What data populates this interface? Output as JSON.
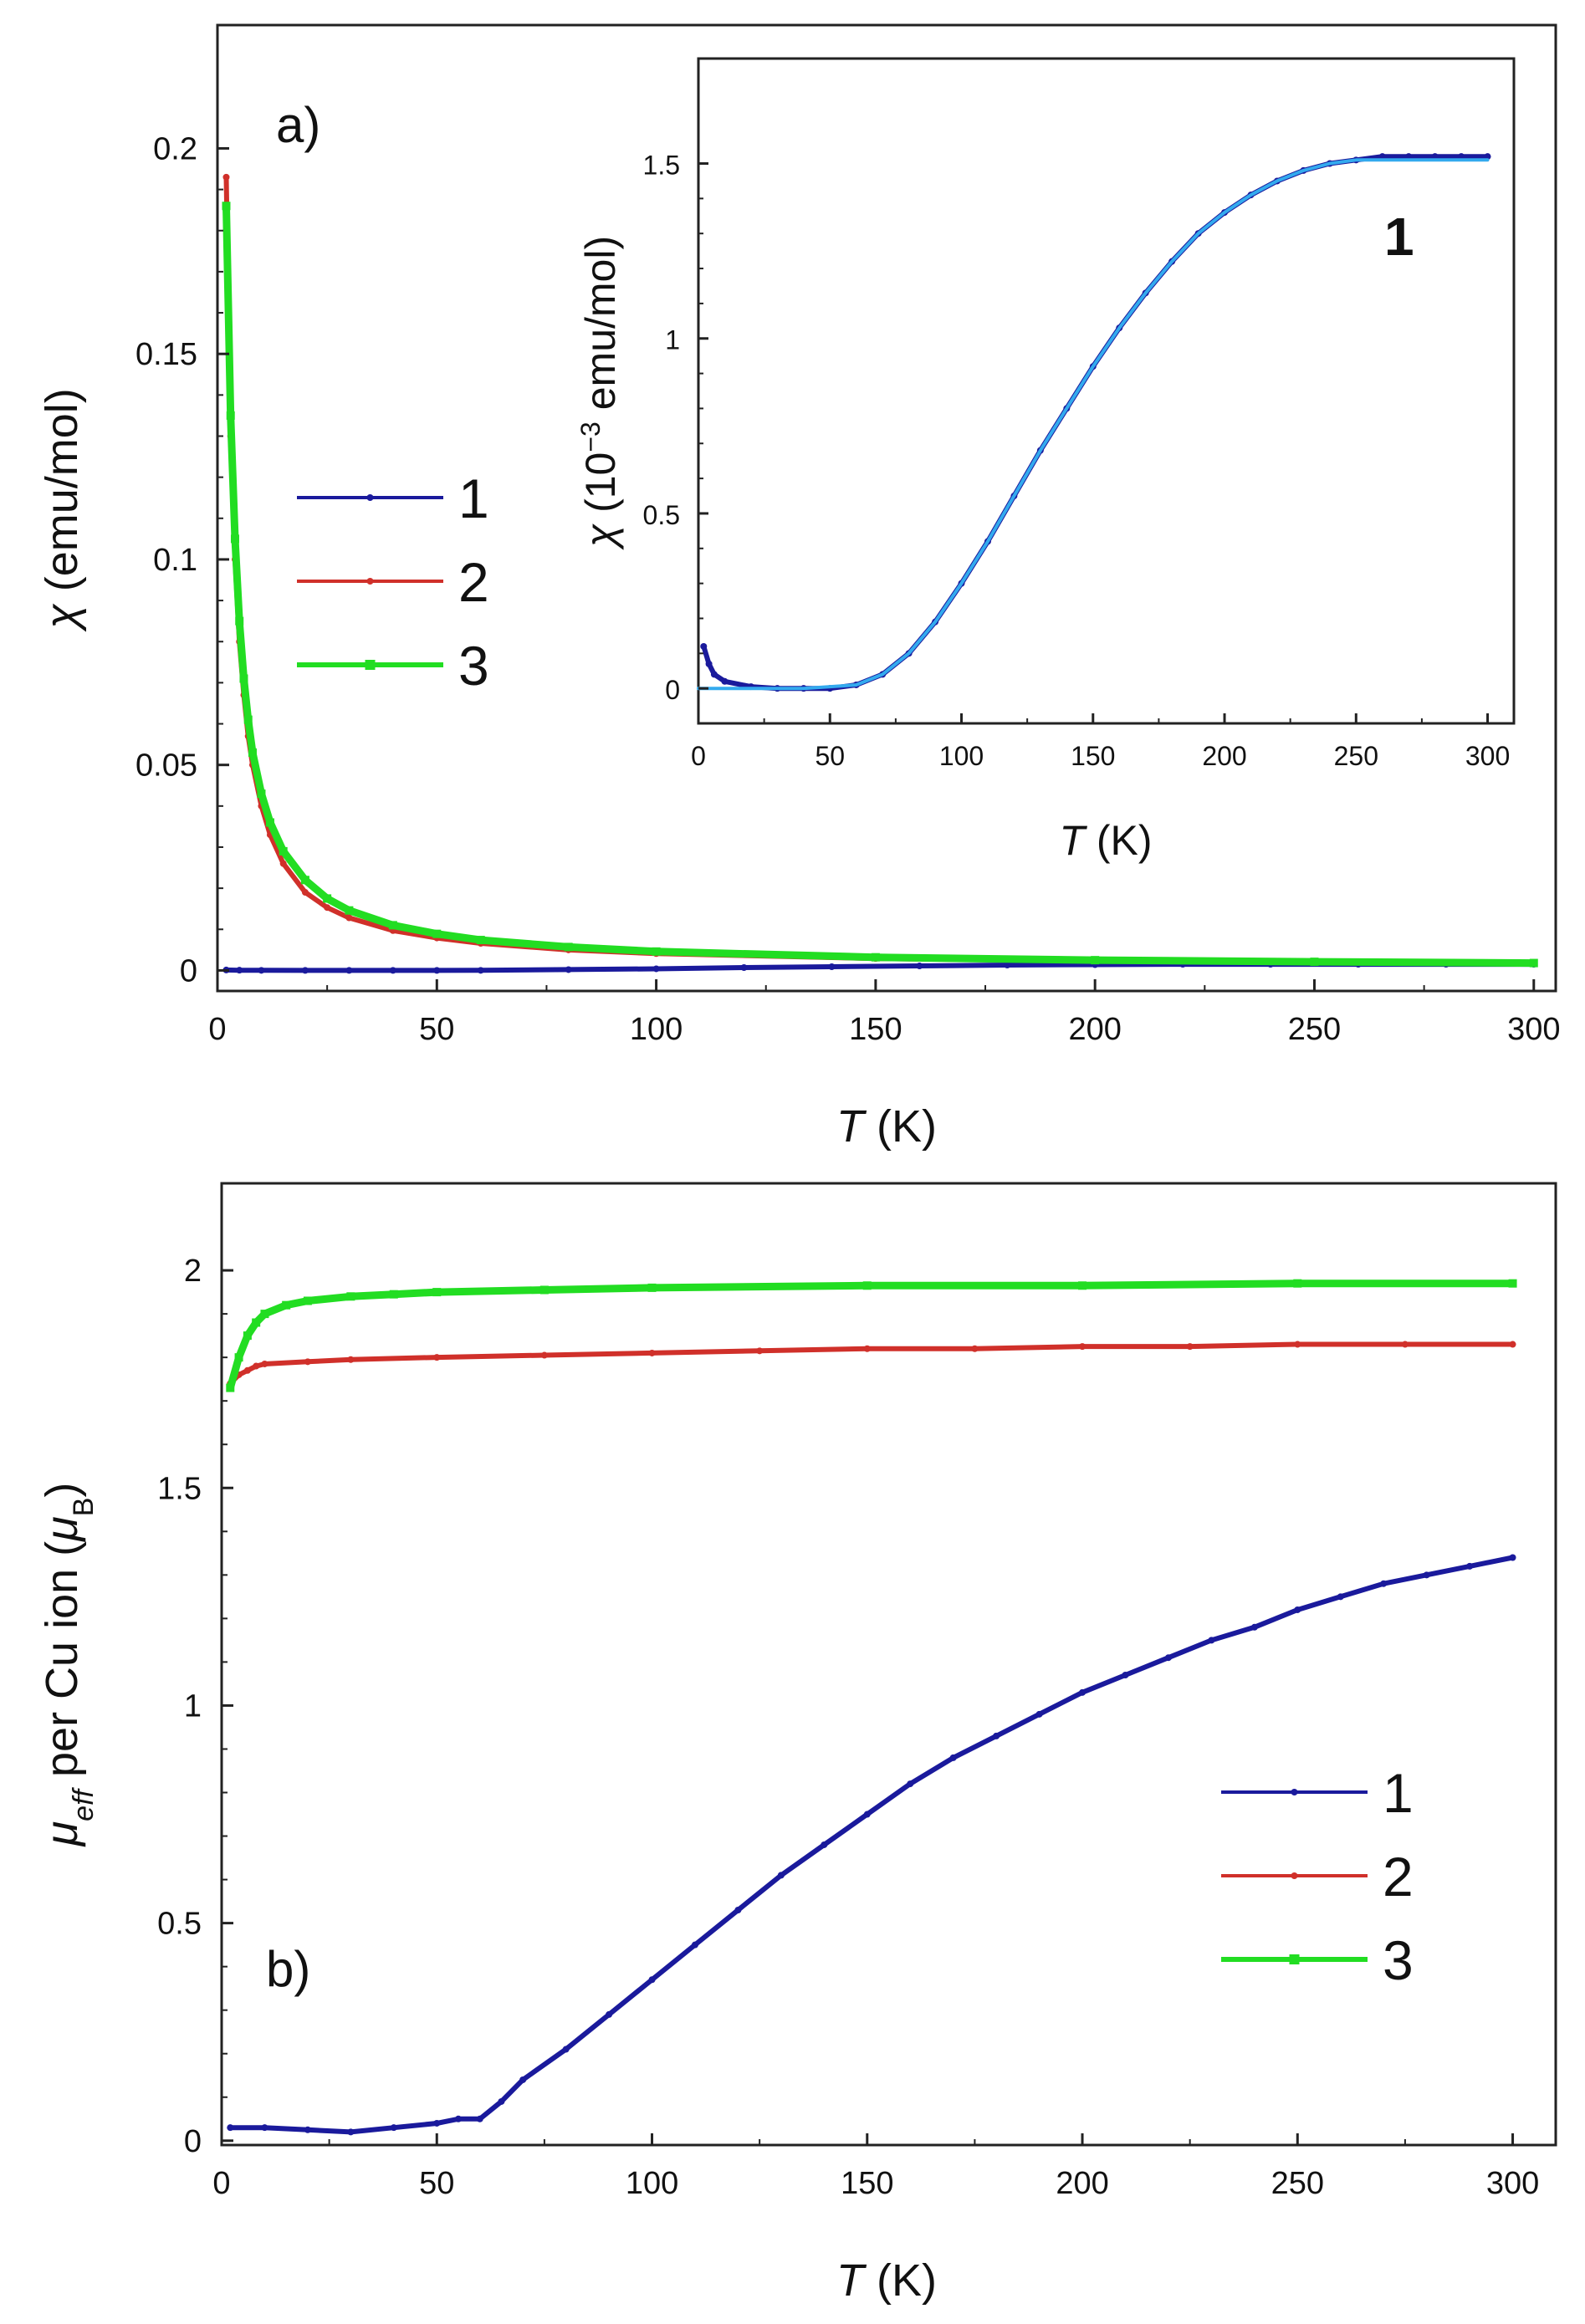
{
  "chart_data": [
    {
      "id": "a",
      "type": "line",
      "panel_label": "a)",
      "xlabel_symbol": "T",
      "xlabel_rest": " (K)",
      "ylabel_symbol": "χ",
      "ylabel_rest": " (emu/mol)",
      "xlim": [
        0,
        305
      ],
      "ylim": [
        -0.005,
        0.23
      ],
      "xticks": [
        0,
        50,
        100,
        150,
        200,
        250,
        300
      ],
      "xtick_labels": [
        "0",
        "50",
        "100",
        "150",
        "200",
        "250",
        "300"
      ],
      "yticks": [
        0,
        0.05,
        0.1,
        0.15,
        0.2
      ],
      "ytick_labels": [
        "0",
        "0.05",
        "0.1",
        "0.15",
        "0.2"
      ],
      "legend": {
        "position": "middle-left",
        "entries": [
          "1",
          "2",
          "3"
        ]
      },
      "series": [
        {
          "name": "1",
          "color": "#1a1a9c",
          "marker": "dot",
          "x": [
            2,
            5,
            10,
            20,
            30,
            40,
            50,
            60,
            80,
            100,
            120,
            140,
            160,
            180,
            200,
            220,
            240,
            260,
            280,
            300
          ],
          "y": [
            0.0001,
            5e-05,
            2e-05,
            1e-05,
            1e-05,
            1e-05,
            1e-05,
            2e-05,
            0.0002,
            0.0004,
            0.0007,
            0.0009,
            0.0011,
            0.0013,
            0.0014,
            0.0015,
            0.0015,
            0.0015,
            0.0015,
            0.0015
          ]
        },
        {
          "name": "2",
          "color": "#d0302a",
          "marker": "dot",
          "x": [
            2,
            3,
            4,
            5,
            6,
            7,
            8,
            10,
            12,
            15,
            20,
            25,
            30,
            40,
            50,
            60,
            80,
            100,
            150,
            200,
            250,
            300
          ],
          "y": [
            0.193,
            0.13,
            0.1,
            0.08,
            0.067,
            0.057,
            0.05,
            0.04,
            0.033,
            0.026,
            0.019,
            0.0153,
            0.0128,
            0.0097,
            0.0079,
            0.0066,
            0.005,
            0.0041,
            0.0029,
            0.0023,
            0.0019,
            0.0017
          ]
        },
        {
          "name": "3",
          "color": "#22dd22",
          "marker": "square",
          "x": [
            2,
            3,
            4,
            5,
            6,
            7,
            8,
            10,
            12,
            15,
            20,
            25,
            30,
            40,
            50,
            60,
            80,
            100,
            150,
            200,
            250,
            300
          ],
          "y": [
            0.186,
            0.135,
            0.105,
            0.085,
            0.071,
            0.061,
            0.053,
            0.043,
            0.036,
            0.029,
            0.022,
            0.0175,
            0.0146,
            0.011,
            0.0089,
            0.0074,
            0.0057,
            0.0046,
            0.0032,
            0.0025,
            0.0021,
            0.0018
          ]
        }
      ]
    },
    {
      "id": "a-inset",
      "type": "line",
      "note_label": "1",
      "xlabel_symbol": "T",
      "xlabel_rest": " (K)",
      "ylabel_symbol": "χ",
      "ylabel_pre": " (10",
      "ylabel_sup": "−3",
      "ylabel_post": " emu/mol)",
      "xlim": [
        0,
        310
      ],
      "ylim": [
        -0.1,
        1.8
      ],
      "xticks": [
        0,
        50,
        100,
        150,
        200,
        250,
        300
      ],
      "xtick_labels": [
        "0",
        "50",
        "100",
        "150",
        "200",
        "250",
        "300"
      ],
      "yticks": [
        0,
        0.5,
        1,
        1.5
      ],
      "ytick_labels": [
        "0",
        "0.5",
        "1",
        "1.5"
      ],
      "series": [
        {
          "name": "1",
          "color": "#1a1a9c",
          "marker": "dot",
          "x": [
            2,
            4,
            6,
            10,
            20,
            30,
            40,
            50,
            60,
            70,
            80,
            90,
            100,
            110,
            120,
            130,
            140,
            150,
            160,
            170,
            180,
            190,
            200,
            210,
            220,
            230,
            240,
            250,
            260,
            270,
            280,
            290,
            300
          ],
          "y": [
            0.12,
            0.07,
            0.04,
            0.02,
            0.005,
            0.0,
            0.0,
            0.0,
            0.01,
            0.04,
            0.1,
            0.19,
            0.3,
            0.42,
            0.55,
            0.68,
            0.8,
            0.92,
            1.03,
            1.13,
            1.22,
            1.3,
            1.36,
            1.41,
            1.45,
            1.48,
            1.5,
            1.51,
            1.52,
            1.52,
            1.52,
            1.52,
            1.52
          ]
        },
        {
          "name": "fit",
          "color": "#33aaee",
          "marker": "none",
          "x": [
            0,
            20,
            40,
            60,
            70,
            80,
            90,
            100,
            110,
            120,
            130,
            140,
            150,
            160,
            170,
            180,
            190,
            200,
            210,
            220,
            230,
            240,
            250,
            260,
            270,
            280,
            290,
            300
          ],
          "y": [
            0.0,
            0.0,
            0.0,
            0.01,
            0.04,
            0.1,
            0.19,
            0.3,
            0.42,
            0.55,
            0.68,
            0.8,
            0.92,
            1.03,
            1.13,
            1.22,
            1.3,
            1.36,
            1.41,
            1.45,
            1.48,
            1.5,
            1.51,
            1.51,
            1.51,
            1.51,
            1.51,
            1.51
          ]
        }
      ]
    },
    {
      "id": "b",
      "type": "line",
      "panel_label": "b)",
      "xlabel_symbol": "T",
      "xlabel_rest": " (K)",
      "ylabel_mu": "μ",
      "ylabel_mu_sub": "eff",
      "ylabel_mid": " per Cu ion (",
      "ylabel_unit_mu": "μ",
      "ylabel_unit_sub": "B",
      "ylabel_end": ")",
      "xlim": [
        0,
        310
      ],
      "ylim": [
        -0.01,
        2.2
      ],
      "xticks": [
        0,
        50,
        100,
        150,
        200,
        250,
        300
      ],
      "xtick_labels": [
        "0",
        "50",
        "100",
        "150",
        "200",
        "250",
        "300"
      ],
      "yticks": [
        0,
        0.5,
        1,
        1.5,
        2
      ],
      "ytick_labels": [
        "0",
        "0.5",
        "1",
        "1.5",
        "2"
      ],
      "legend": {
        "position": "bottom-right",
        "entries": [
          "1",
          "2",
          "3"
        ]
      },
      "series": [
        {
          "name": "1",
          "color": "#1a1a9c",
          "marker": "dot",
          "x": [
            2,
            10,
            20,
            30,
            40,
            50,
            55,
            60,
            65,
            70,
            80,
            90,
            100,
            110,
            120,
            130,
            140,
            150,
            160,
            170,
            180,
            190,
            200,
            210,
            220,
            230,
            240,
            250,
            260,
            270,
            280,
            290,
            300
          ],
          "y": [
            0.03,
            0.03,
            0.025,
            0.02,
            0.03,
            0.04,
            0.05,
            0.05,
            0.09,
            0.14,
            0.21,
            0.29,
            0.37,
            0.45,
            0.53,
            0.61,
            0.68,
            0.75,
            0.82,
            0.88,
            0.93,
            0.98,
            1.03,
            1.07,
            1.11,
            1.15,
            1.18,
            1.22,
            1.25,
            1.28,
            1.3,
            1.32,
            1.34
          ]
        },
        {
          "name": "2",
          "color": "#d0302a",
          "marker": "dot",
          "x": [
            2,
            4,
            6,
            8,
            10,
            20,
            30,
            50,
            75,
            100,
            125,
            150,
            175,
            200,
            225,
            250,
            275,
            300
          ],
          "y": [
            1.74,
            1.76,
            1.77,
            1.78,
            1.785,
            1.79,
            1.795,
            1.8,
            1.805,
            1.81,
            1.815,
            1.82,
            1.82,
            1.825,
            1.825,
            1.83,
            1.83,
            1.83
          ]
        },
        {
          "name": "3",
          "color": "#22dd22",
          "marker": "square",
          "x": [
            2,
            4,
            6,
            8,
            10,
            15,
            20,
            30,
            40,
            50,
            75,
            100,
            150,
            200,
            250,
            300
          ],
          "y": [
            1.73,
            1.8,
            1.85,
            1.88,
            1.9,
            1.92,
            1.93,
            1.94,
            1.945,
            1.95,
            1.955,
            1.96,
            1.965,
            1.965,
            1.97,
            1.97
          ]
        }
      ]
    }
  ]
}
